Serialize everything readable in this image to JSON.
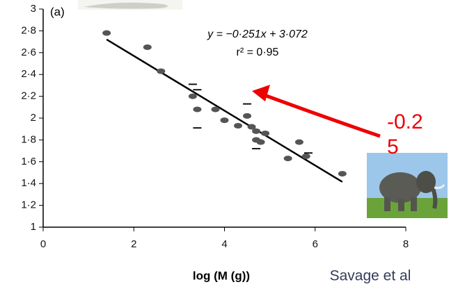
{
  "chart_data": {
    "type": "scatter",
    "panel_label": "(a)",
    "equation": "y = −0·251x + 3·072",
    "r_squared": "r² = 0·95",
    "xlabel": "log (M (g))",
    "note": "-0.25",
    "source": "Savage et al",
    "xlim": [
      0,
      8
    ],
    "xticks": [
      0,
      2,
      4,
      6,
      8
    ],
    "ylim": [
      1,
      3
    ],
    "yticks": [
      1,
      {
        "value": 1.2,
        "label": "1·2"
      },
      {
        "value": 1.4,
        "label": "1·4"
      },
      {
        "value": 1.6,
        "label": "1·6"
      },
      {
        "value": 1.8,
        "label": "1·8"
      },
      2,
      {
        "value": 2.2,
        "label": "2·2"
      },
      {
        "value": 2.4,
        "label": "2·4"
      },
      {
        "value": 2.6,
        "label": "2·6"
      },
      {
        "value": 2.8,
        "label": "2·8"
      },
      3
    ],
    "series": [
      {
        "marker": "circle",
        "color": "#555555",
        "x": [
          1.4,
          2.3,
          2.6,
          3.3,
          3.4,
          3.8,
          4.0,
          4.3,
          4.5,
          4.6,
          4.7,
          4.7,
          4.8,
          4.9,
          5.4,
          5.65,
          5.8,
          6.6
        ],
        "values": [
          2.78,
          2.65,
          2.43,
          2.2,
          2.08,
          2.08,
          1.98,
          1.93,
          2.02,
          1.92,
          1.88,
          1.8,
          1.78,
          1.86,
          1.63,
          1.78,
          1.65,
          1.49
        ]
      },
      {
        "marker": "dash",
        "color": "#111111",
        "x": [
          3.3,
          3.4,
          3.4,
          4.5,
          4.7,
          5.85
        ],
        "values": [
          2.31,
          2.26,
          1.91,
          2.13,
          1.72,
          1.68
        ]
      }
    ],
    "fit": {
      "slope": -0.251,
      "intercept": 3.072,
      "xrange": [
        1.4,
        6.6
      ],
      "color": "#000000"
    }
  }
}
